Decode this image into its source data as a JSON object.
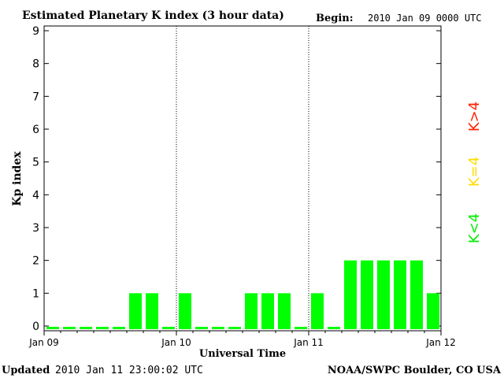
{
  "chart_data": {
    "type": "bar",
    "title": "Estimated Planetary K index (3 hour data)",
    "begin_label": "Begin:",
    "begin_value": "2010 Jan 09 0000 UTC",
    "xlabel": "Universal Time",
    "ylabel": "Kp index",
    "ylim": [
      0,
      9
    ],
    "yticks": [
      "0",
      "1",
      "2",
      "3",
      "4",
      "5",
      "6",
      "7",
      "8",
      "9"
    ],
    "xticks": [
      "Jan 09",
      "Jan 10",
      "Jan 11",
      "Jan 12"
    ],
    "day_dividers": [
      "Jan 10",
      "Jan 11"
    ],
    "values": [
      0,
      0,
      0,
      0,
      0,
      1,
      1,
      0,
      1,
      0,
      0,
      0,
      1,
      1,
      1,
      0,
      1,
      0,
      2,
      2,
      2,
      2,
      2,
      1
    ],
    "bar_color": "#00ff00",
    "legend": [
      {
        "label": "K>4",
        "color": "#ff2200"
      },
      {
        "label": "K=4",
        "color": "#ffdd00"
      },
      {
        "label": "K<4",
        "color": "#00ee00"
      }
    ],
    "updated_label": "Updated",
    "updated_value": "2010 Jan 11 23:00:02 UTC",
    "source": "NOAA/SWPC Boulder, CO USA"
  }
}
